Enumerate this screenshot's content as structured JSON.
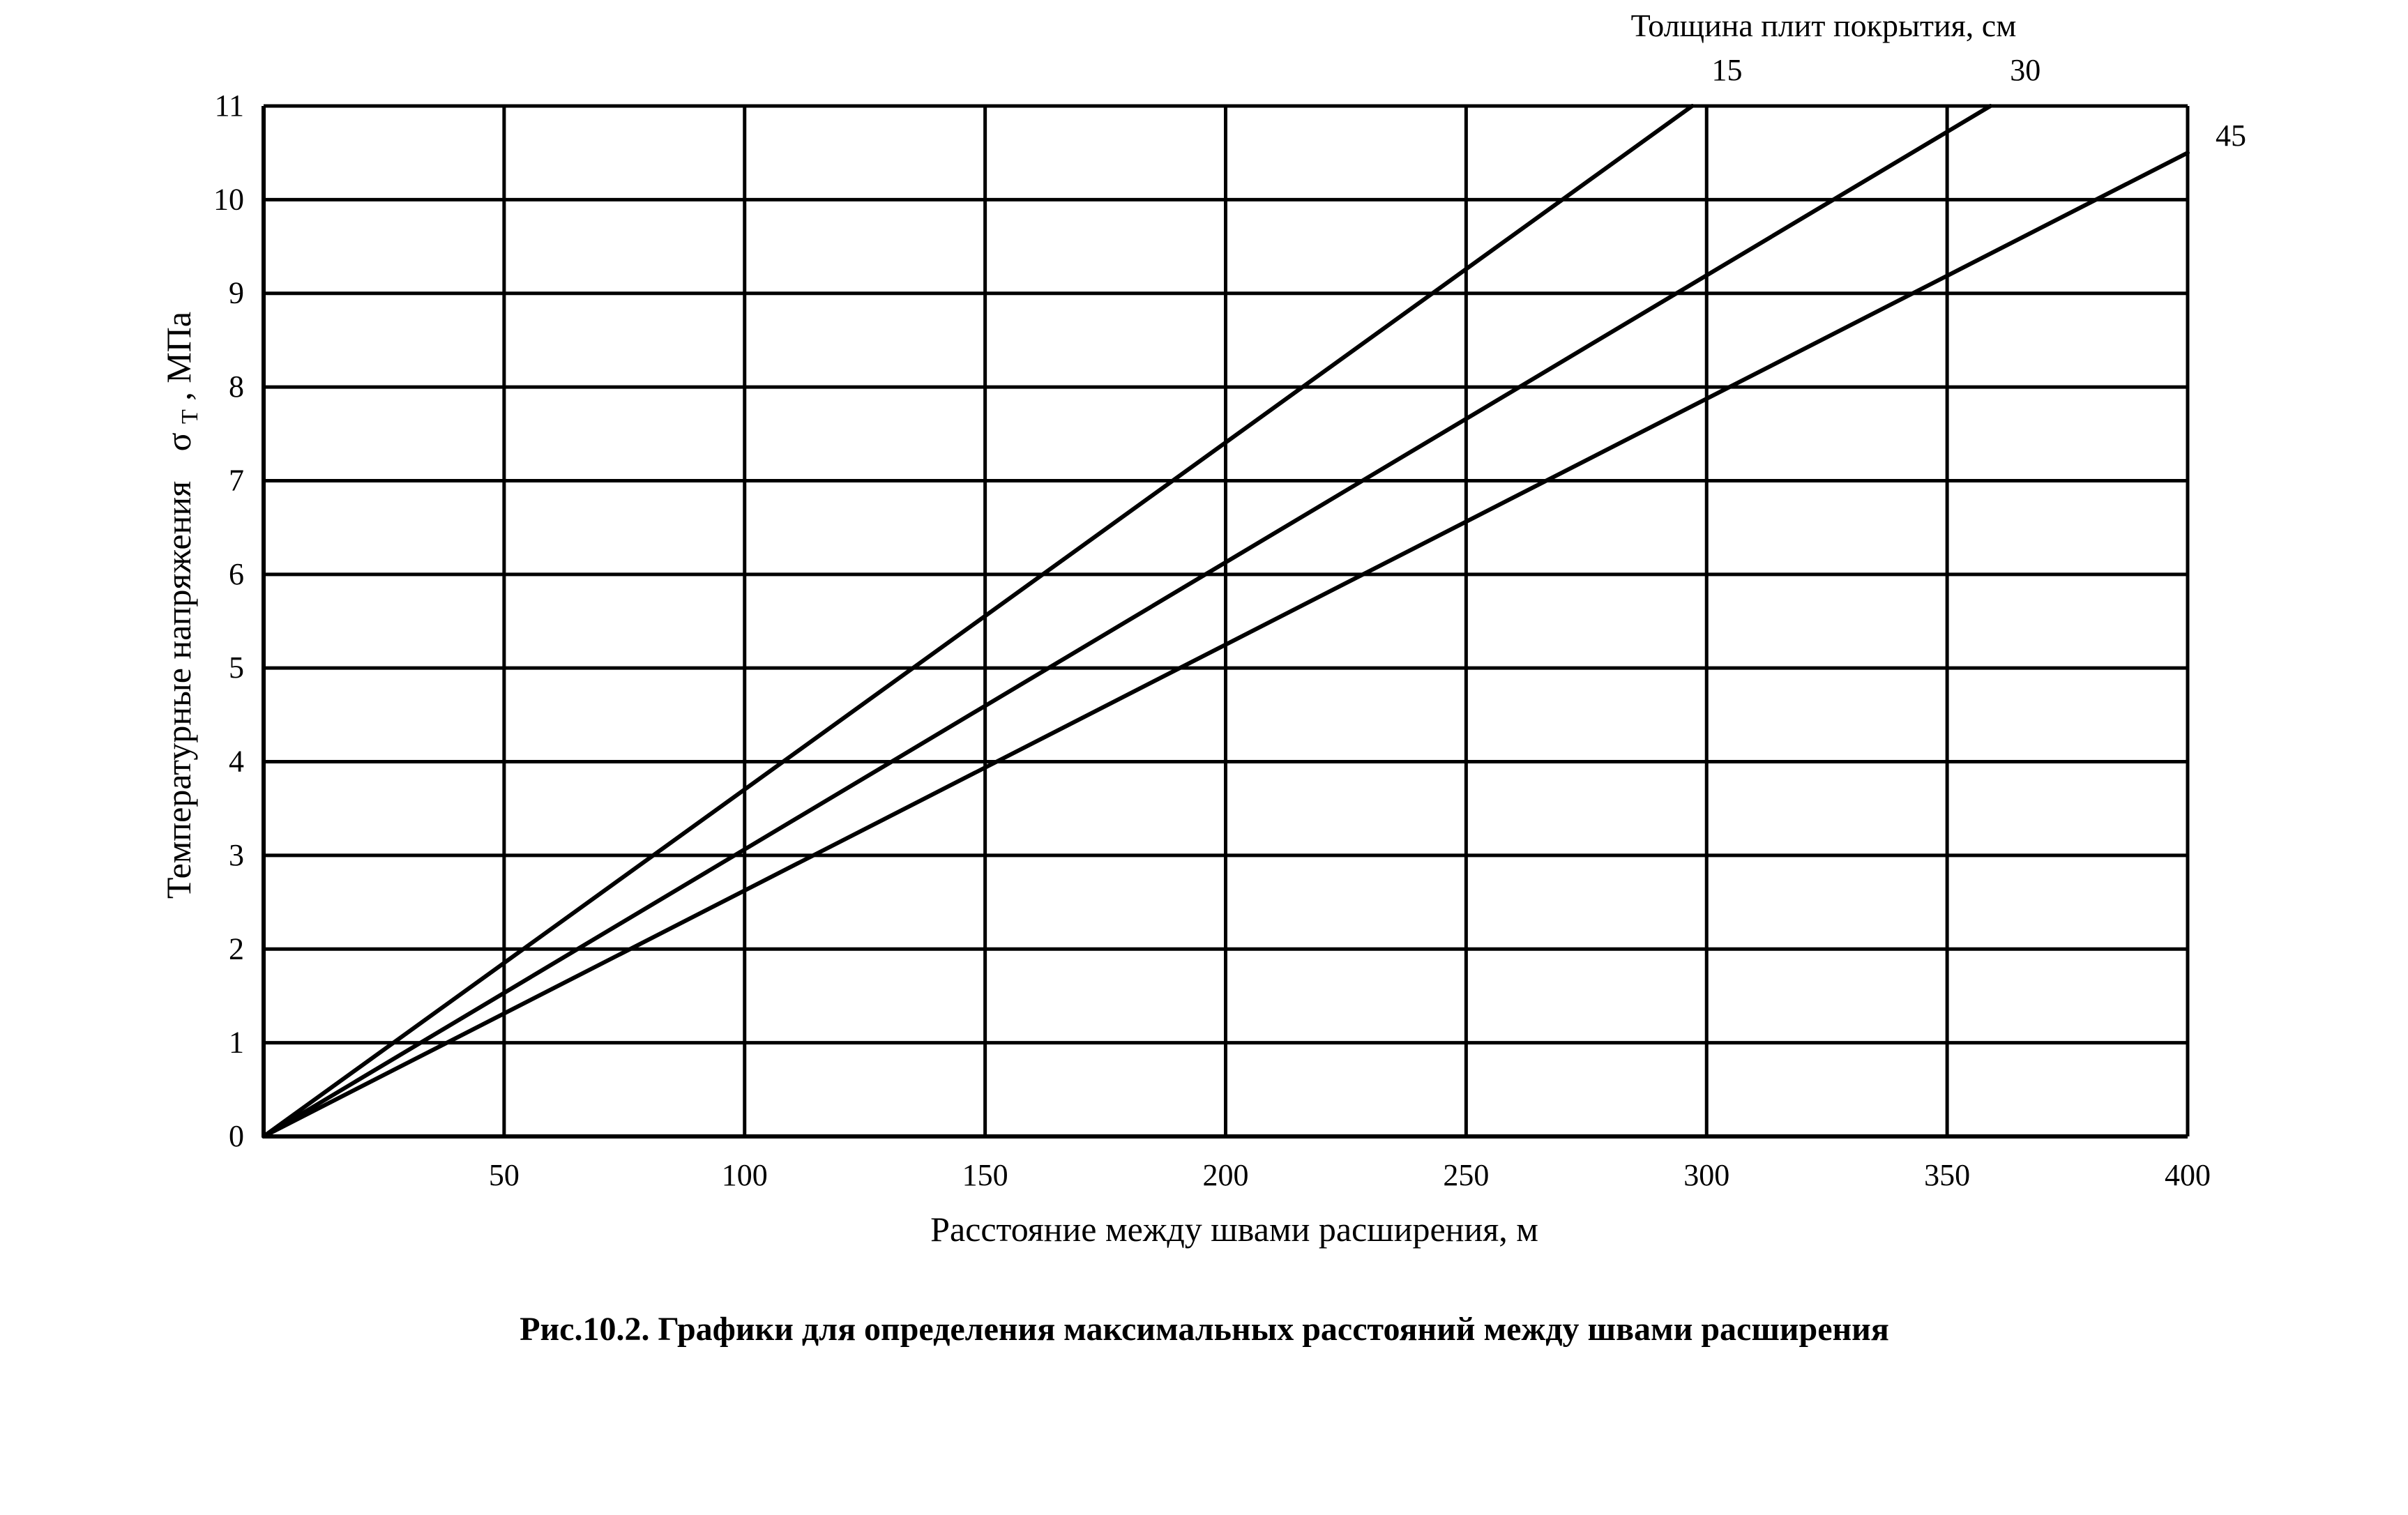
{
  "chart_data": {
    "type": "line",
    "xlabel": "Расстояние между швами расширения, м",
    "ylabel_prefix": "Температурные напряжения",
    "ylabel_symbol": "σ",
    "ylabel_subscript": "Т",
    "ylabel_unit": ", МПа",
    "series_title": "Толщина плит покрытия, см",
    "caption": "Рис.10.2. Графики для определения максимальных расстояний между  швами расширения",
    "xlim": [
      0,
      400
    ],
    "ylim": [
      0,
      11
    ],
    "x_ticks": [
      50,
      100,
      150,
      200,
      250,
      300,
      350,
      400
    ],
    "y_ticks": [
      0,
      1,
      2,
      3,
      4,
      5,
      6,
      7,
      8,
      9,
      10,
      11
    ],
    "x_gridlines": [
      50,
      100,
      150,
      200,
      250,
      300,
      350,
      400
    ],
    "y_gridlines": [
      1,
      2,
      3,
      4,
      5,
      6,
      7,
      8,
      9,
      10,
      11
    ],
    "grid": true,
    "series": [
      {
        "name": "15",
        "x": [
          0,
          297
        ],
        "y": [
          0,
          11.0
        ]
      },
      {
        "name": "30",
        "x": [
          0,
          359
        ],
        "y": [
          0,
          11.0
        ]
      },
      {
        "name": "45",
        "x": [
          0,
          400
        ],
        "y": [
          0,
          10.5
        ]
      }
    ],
    "colors": {
      "line": "#000000",
      "background": "#ffffff"
    }
  }
}
